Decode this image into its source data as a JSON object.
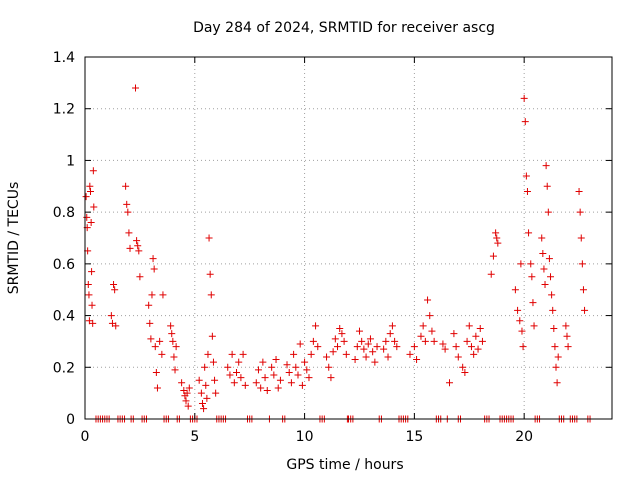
{
  "chart_data": {
    "type": "scatter",
    "title": "Day 284 of 2024, SRMTID for receiver ascg",
    "xlabel": "GPS time / hours",
    "ylabel": "SRMTID / TECUs",
    "xlim": [
      0,
      24
    ],
    "ylim": [
      0,
      1.4
    ],
    "xticks": [
      0,
      5,
      10,
      15,
      20
    ],
    "yticks": [
      0,
      0.2,
      0.4,
      0.6,
      0.8,
      1,
      1.2,
      1.4
    ],
    "xtick_labels": [
      "0",
      "5",
      "10",
      "15",
      "20"
    ],
    "ytick_labels": [
      "0",
      "0.2",
      "0.4",
      "0.6",
      "0.8",
      "1",
      "1.2",
      "1.4"
    ],
    "grid": true,
    "marker": "plus",
    "marker_color": "#e00000",
    "series": [
      {
        "name": "SRMTID",
        "points": [
          [
            0.05,
            0.86
          ],
          [
            0.08,
            0.78
          ],
          [
            0.1,
            0.74
          ],
          [
            0.12,
            0.65
          ],
          [
            0.15,
            0.52
          ],
          [
            0.18,
            0.48
          ],
          [
            0.2,
            0.38
          ],
          [
            0.22,
            0.9
          ],
          [
            0.25,
            0.88
          ],
          [
            0.28,
            0.76
          ],
          [
            0.3,
            0.57
          ],
          [
            0.32,
            0.44
          ],
          [
            0.35,
            0.37
          ],
          [
            0.38,
            0.96
          ],
          [
            0.4,
            0.82
          ],
          [
            1.2,
            0.4
          ],
          [
            1.25,
            0.37
          ],
          [
            1.3,
            0.52
          ],
          [
            1.35,
            0.5
          ],
          [
            1.4,
            0.36
          ],
          [
            1.85,
            0.9
          ],
          [
            1.9,
            0.83
          ],
          [
            1.95,
            0.8
          ],
          [
            2.0,
            0.72
          ],
          [
            2.05,
            0.66
          ],
          [
            2.3,
            1.28
          ],
          [
            2.35,
            0.69
          ],
          [
            2.4,
            0.67
          ],
          [
            2.45,
            0.65
          ],
          [
            2.5,
            0.55
          ],
          [
            2.9,
            0.44
          ],
          [
            2.95,
            0.37
          ],
          [
            3.0,
            0.31
          ],
          [
            3.05,
            0.48
          ],
          [
            3.1,
            0.62
          ],
          [
            3.15,
            0.58
          ],
          [
            3.2,
            0.28
          ],
          [
            3.25,
            0.18
          ],
          [
            3.3,
            0.12
          ],
          [
            3.4,
            0.3
          ],
          [
            3.5,
            0.25
          ],
          [
            3.55,
            0.48
          ],
          [
            3.9,
            0.36
          ],
          [
            3.95,
            0.33
          ],
          [
            4.0,
            0.3
          ],
          [
            4.05,
            0.24
          ],
          [
            4.1,
            0.19
          ],
          [
            4.15,
            0.28
          ],
          [
            4.4,
            0.14
          ],
          [
            4.5,
            0.11
          ],
          [
            4.55,
            0.09
          ],
          [
            4.6,
            0.07
          ],
          [
            4.65,
            0.1
          ],
          [
            4.7,
            0.05
          ],
          [
            4.75,
            0.12
          ],
          [
            5.2,
            0.15
          ],
          [
            5.3,
            0.1
          ],
          [
            5.35,
            0.06
          ],
          [
            5.4,
            0.04
          ],
          [
            5.45,
            0.2
          ],
          [
            5.5,
            0.13
          ],
          [
            5.55,
            0.08
          ],
          [
            5.6,
            0.25
          ],
          [
            5.65,
            0.7
          ],
          [
            5.7,
            0.56
          ],
          [
            5.75,
            0.48
          ],
          [
            5.8,
            0.32
          ],
          [
            5.85,
            0.22
          ],
          [
            5.9,
            0.15
          ],
          [
            5.95,
            0.1
          ],
          [
            6.5,
            0.2
          ],
          [
            6.6,
            0.17
          ],
          [
            6.7,
            0.25
          ],
          [
            6.8,
            0.14
          ],
          [
            6.9,
            0.18
          ],
          [
            7.0,
            0.22
          ],
          [
            7.1,
            0.16
          ],
          [
            7.2,
            0.25
          ],
          [
            7.3,
            0.13
          ],
          [
            7.8,
            0.14
          ],
          [
            7.9,
            0.19
          ],
          [
            8.0,
            0.12
          ],
          [
            8.1,
            0.22
          ],
          [
            8.2,
            0.16
          ],
          [
            8.3,
            0.11
          ],
          [
            8.5,
            0.2
          ],
          [
            8.6,
            0.17
          ],
          [
            8.7,
            0.23
          ],
          [
            8.8,
            0.12
          ],
          [
            8.9,
            0.15
          ],
          [
            9.2,
            0.21
          ],
          [
            9.3,
            0.18
          ],
          [
            9.4,
            0.14
          ],
          [
            9.5,
            0.25
          ],
          [
            9.6,
            0.2
          ],
          [
            9.7,
            0.17
          ],
          [
            9.8,
            0.29
          ],
          [
            9.9,
            0.13
          ],
          [
            10.0,
            0.22
          ],
          [
            10.1,
            0.19
          ],
          [
            10.2,
            0.16
          ],
          [
            10.3,
            0.25
          ],
          [
            10.4,
            0.3
          ],
          [
            10.5,
            0.36
          ],
          [
            10.6,
            0.28
          ],
          [
            11.0,
            0.24
          ],
          [
            11.1,
            0.2
          ],
          [
            11.2,
            0.16
          ],
          [
            11.3,
            0.26
          ],
          [
            11.4,
            0.31
          ],
          [
            11.5,
            0.28
          ],
          [
            11.6,
            0.35
          ],
          [
            11.7,
            0.33
          ],
          [
            11.8,
            0.3
          ],
          [
            11.9,
            0.25
          ],
          [
            12.3,
            0.23
          ],
          [
            12.4,
            0.28
          ],
          [
            12.5,
            0.34
          ],
          [
            12.6,
            0.3
          ],
          [
            12.7,
            0.27
          ],
          [
            12.8,
            0.24
          ],
          [
            12.9,
            0.29
          ],
          [
            13.0,
            0.31
          ],
          [
            13.1,
            0.26
          ],
          [
            13.2,
            0.22
          ],
          [
            13.3,
            0.28
          ],
          [
            13.6,
            0.27
          ],
          [
            13.7,
            0.3
          ],
          [
            13.8,
            0.24
          ],
          [
            13.9,
            0.33
          ],
          [
            14.0,
            0.36
          ],
          [
            14.1,
            0.3
          ],
          [
            14.2,
            0.28
          ],
          [
            14.8,
            0.25
          ],
          [
            15.0,
            0.28
          ],
          [
            15.1,
            0.23
          ],
          [
            15.3,
            0.32
          ],
          [
            15.4,
            0.36
          ],
          [
            15.5,
            0.3
          ],
          [
            15.6,
            0.46
          ],
          [
            15.7,
            0.4
          ],
          [
            15.8,
            0.34
          ],
          [
            15.9,
            0.3
          ],
          [
            16.3,
            0.29
          ],
          [
            16.4,
            0.27
          ],
          [
            16.6,
            0.14
          ],
          [
            16.8,
            0.33
          ],
          [
            16.9,
            0.28
          ],
          [
            17.0,
            0.24
          ],
          [
            17.2,
            0.2
          ],
          [
            17.3,
            0.18
          ],
          [
            17.4,
            0.3
          ],
          [
            17.5,
            0.36
          ],
          [
            17.6,
            0.28
          ],
          [
            17.7,
            0.25
          ],
          [
            17.8,
            0.32
          ],
          [
            17.9,
            0.27
          ],
          [
            18.0,
            0.35
          ],
          [
            18.1,
            0.3
          ],
          [
            18.5,
            0.56
          ],
          [
            18.6,
            0.63
          ],
          [
            18.7,
            0.72
          ],
          [
            18.75,
            0.7
          ],
          [
            18.8,
            0.68
          ],
          [
            19.6,
            0.5
          ],
          [
            19.7,
            0.42
          ],
          [
            19.8,
            0.38
          ],
          [
            19.85,
            0.6
          ],
          [
            19.9,
            0.34
          ],
          [
            19.95,
            0.28
          ],
          [
            20.0,
            1.24
          ],
          [
            20.05,
            1.15
          ],
          [
            20.1,
            0.94
          ],
          [
            20.15,
            0.88
          ],
          [
            20.2,
            0.72
          ],
          [
            20.3,
            0.6
          ],
          [
            20.35,
            0.55
          ],
          [
            20.4,
            0.45
          ],
          [
            20.45,
            0.36
          ],
          [
            20.8,
            0.7
          ],
          [
            20.85,
            0.64
          ],
          [
            20.9,
            0.58
          ],
          [
            20.95,
            0.52
          ],
          [
            21.0,
            0.98
          ],
          [
            21.05,
            0.9
          ],
          [
            21.1,
            0.8
          ],
          [
            21.15,
            0.62
          ],
          [
            21.2,
            0.55
          ],
          [
            21.25,
            0.48
          ],
          [
            21.3,
            0.42
          ],
          [
            21.35,
            0.35
          ],
          [
            21.4,
            0.28
          ],
          [
            21.45,
            0.2
          ],
          [
            21.5,
            0.14
          ],
          [
            21.55,
            0.24
          ],
          [
            21.9,
            0.36
          ],
          [
            21.95,
            0.32
          ],
          [
            22.0,
            0.28
          ],
          [
            22.5,
            0.88
          ],
          [
            22.55,
            0.8
          ],
          [
            22.6,
            0.7
          ],
          [
            22.65,
            0.6
          ],
          [
            22.7,
            0.5
          ],
          [
            22.75,
            0.42
          ]
        ],
        "zero_points_x": [
          0.5,
          0.6,
          0.7,
          0.8,
          0.9,
          1.0,
          1.1,
          1.5,
          1.6,
          1.7,
          1.8,
          2.1,
          2.2,
          2.6,
          2.7,
          2.8,
          3.6,
          3.7,
          3.8,
          4.2,
          4.3,
          4.8,
          4.9,
          5.0,
          5.1,
          6.0,
          6.1,
          6.2,
          6.3,
          6.4,
          7.4,
          7.5,
          7.6,
          8.4,
          9.0,
          9.1,
          10.7,
          10.8,
          10.9,
          11.95,
          12.0,
          12.1,
          12.2,
          13.4,
          13.5,
          14.3,
          14.4,
          14.5,
          14.6,
          14.7,
          16.0,
          16.1,
          16.2,
          16.5,
          17.0,
          17.1,
          18.2,
          18.3,
          18.4,
          18.9,
          19.0,
          19.1,
          19.2,
          19.3,
          19.4,
          19.5,
          20.5,
          20.6,
          20.7,
          21.6,
          21.7,
          21.8,
          22.1,
          22.2,
          22.3,
          22.4,
          22.9,
          23.0
        ]
      }
    ]
  }
}
